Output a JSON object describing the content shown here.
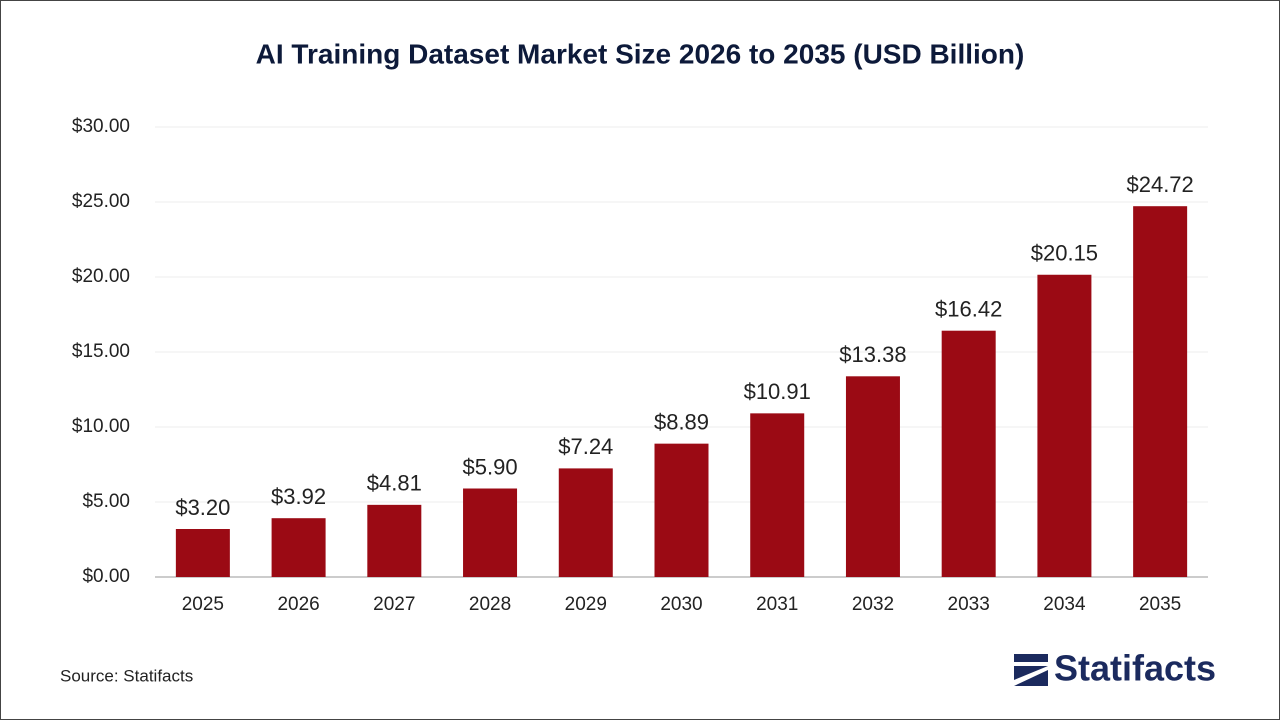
{
  "chart_data": {
    "type": "bar",
    "title": "AI Training Dataset Market Size 2026 to 2035 (USD Billion)",
    "categories": [
      "2025",
      "2026",
      "2027",
      "2028",
      "2029",
      "2030",
      "2031",
      "2032",
      "2033",
      "2034",
      "2035"
    ],
    "values": [
      3.2,
      3.92,
      4.81,
      5.9,
      7.24,
      8.89,
      10.91,
      13.38,
      16.42,
      20.15,
      24.72
    ],
    "value_labels": [
      "$3.20",
      "$3.92",
      "$4.81",
      "$5.90",
      "$7.24",
      "$8.89",
      "$10.91",
      "$13.38",
      "$16.42",
      "$20.15",
      "$24.72"
    ],
    "color": "#9b0a14",
    "ylim": [
      0,
      30
    ],
    "yticks": [
      {
        "value": 0,
        "label": "$0.00"
      },
      {
        "value": 5,
        "label": "$5.00"
      },
      {
        "value": 10,
        "label": "$10.00"
      },
      {
        "value": 15,
        "label": "$15.00"
      },
      {
        "value": 20,
        "label": "$20.00"
      },
      {
        "value": 25,
        "label": "$25.00"
      },
      {
        "value": 30,
        "label": "$30.00"
      }
    ],
    "grid": true
  },
  "footer": {
    "source": "Source: Statifacts",
    "logo": "Statifacts"
  }
}
